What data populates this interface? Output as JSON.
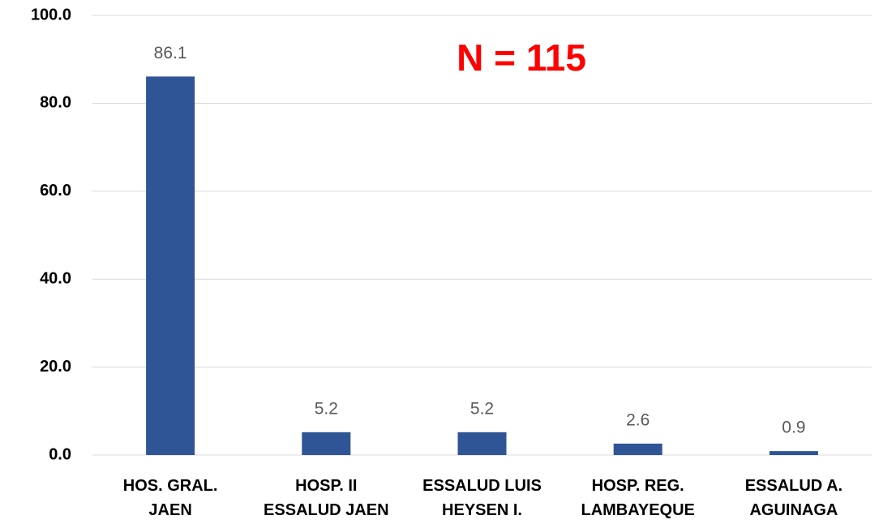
{
  "chart_data": {
    "type": "bar",
    "annotation": "N = 115",
    "categories": [
      "HOS. GRAL.\nJAEN",
      "HOSP. II\nESSALUD JAEN",
      "ESSALUD LUIS\nHEYSEN I.",
      "HOSP. REG.\nLAMBAYEQUE",
      "ESSALUD A.\nAGUINAGA"
    ],
    "values": [
      86.1,
      5.2,
      5.2,
      2.6,
      0.9
    ],
    "value_labels": [
      "86.1",
      "5.2",
      "5.2",
      "2.6",
      "0.9"
    ],
    "color": "#2f5597",
    "ylim": [
      0,
      100
    ],
    "yticks": [
      {
        "value": 0,
        "label": "0.0"
      },
      {
        "value": 20,
        "label": "20.0"
      },
      {
        "value": 40,
        "label": "40.0"
      },
      {
        "value": 60,
        "label": "60.0"
      },
      {
        "value": 80,
        "label": "80.0"
      },
      {
        "value": 100,
        "label": "100.0"
      }
    ],
    "grid": true
  }
}
